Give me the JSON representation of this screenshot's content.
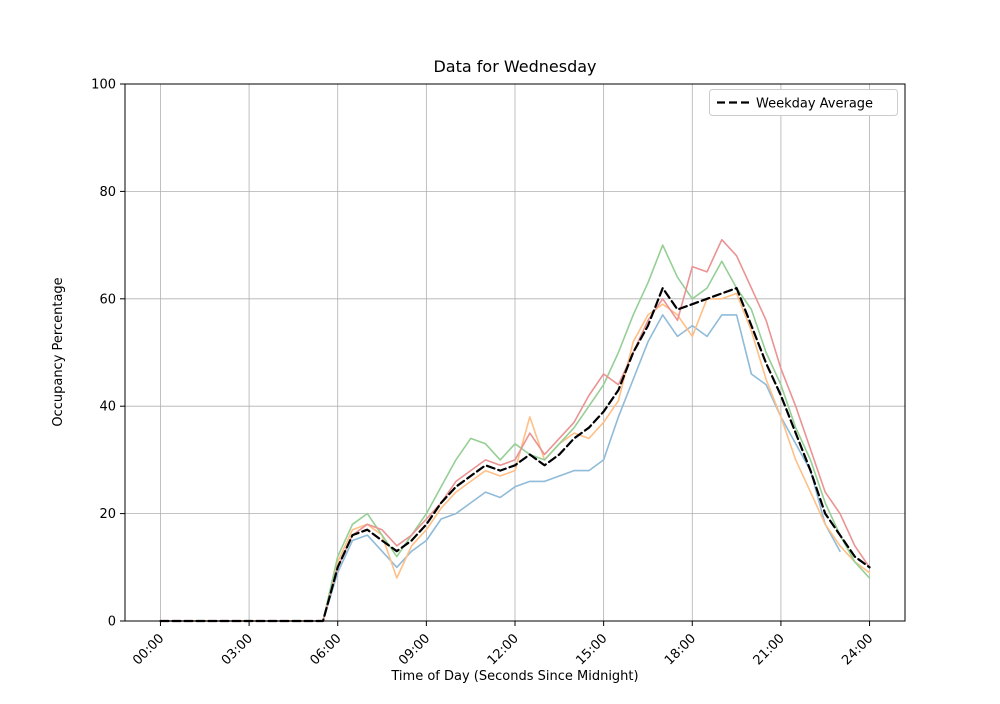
{
  "chart_data": {
    "type": "line",
    "title": "Data for Wednesday",
    "xlabel": "Time of Day (Seconds Since Midnight)",
    "ylabel": "Occupancy Percentage",
    "ylim": [
      0,
      100
    ],
    "xlim_hours": [
      -1.2,
      25.2
    ],
    "grid": true,
    "yticks": [
      0,
      20,
      40,
      60,
      80,
      100
    ],
    "xticks": {
      "hours": [
        0,
        3,
        6,
        9,
        12,
        15,
        18,
        21,
        24
      ],
      "labels": [
        "00:00",
        "03:00",
        "06:00",
        "09:00",
        "12:00",
        "15:00",
        "18:00",
        "21:00",
        "24:00"
      ]
    },
    "legend": {
      "position": "upper right",
      "entries": [
        {
          "label": "Weekday Average",
          "color": "#000000",
          "style": "dashed"
        }
      ]
    },
    "x_hours": [
      0,
      0.5,
      1,
      1.5,
      2,
      2.5,
      3,
      3.5,
      4,
      4.5,
      5,
      5.5,
      6,
      6.5,
      7,
      7.5,
      8,
      8.5,
      9,
      9.5,
      10,
      10.5,
      11,
      11.5,
      12,
      12.5,
      13,
      13.5,
      14,
      14.5,
      15,
      15.5,
      16,
      16.5,
      17,
      17.5,
      18,
      18.5,
      19,
      19.5,
      20,
      20.5,
      21,
      21.5,
      22,
      22.5,
      23,
      23.5,
      24
    ],
    "series": [
      {
        "name": "day-1-blue",
        "color": "#8fbbd9",
        "dashed": false,
        "values": [
          0,
          0,
          0,
          0,
          0,
          0,
          0,
          0,
          0,
          0,
          0,
          0,
          9,
          15,
          16,
          13,
          10,
          13,
          15,
          19,
          20,
          22,
          24,
          23,
          25,
          26,
          26,
          27,
          28,
          28,
          30,
          38,
          45,
          52,
          57,
          53,
          55,
          53,
          57,
          57,
          46,
          44,
          38,
          33,
          28,
          18,
          13,
          null,
          null
        ]
      },
      {
        "name": "day-2-orange",
        "color": "#ffbf86",
        "dashed": false,
        "values": [
          0,
          0,
          0,
          0,
          0,
          0,
          0,
          0,
          0,
          0,
          0,
          0,
          11,
          17,
          18,
          16,
          8,
          14,
          17,
          21,
          24,
          26,
          28,
          27,
          28,
          38,
          30,
          33,
          35,
          34,
          37,
          41,
          52,
          57,
          59,
          57,
          53,
          60,
          60,
          61,
          54,
          45,
          38,
          30,
          24,
          18,
          14,
          11,
          9
        ]
      },
      {
        "name": "day-3-green",
        "color": "#95cf95",
        "dashed": false,
        "values": [
          0,
          0,
          0,
          0,
          0,
          0,
          0,
          0,
          0,
          0,
          0,
          0,
          12,
          18,
          20,
          16,
          12,
          16,
          20,
          25,
          30,
          34,
          33,
          30,
          33,
          31,
          30,
          33,
          36,
          40,
          44,
          50,
          57,
          63,
          70,
          64,
          60,
          62,
          67,
          62,
          58,
          50,
          44,
          36,
          30,
          22,
          16,
          11,
          8
        ]
      },
      {
        "name": "day-4-red",
        "color": "#ea9393",
        "dashed": false,
        "values": [
          0,
          0,
          0,
          0,
          0,
          0,
          0,
          0,
          0,
          0,
          0,
          0,
          10,
          16,
          18,
          17,
          14,
          16,
          19,
          22,
          26,
          28,
          30,
          29,
          30,
          35,
          31,
          34,
          37,
          42,
          46,
          44,
          50,
          56,
          60,
          56,
          66,
          65,
          71,
          68,
          62,
          56,
          47,
          40,
          32,
          24,
          20,
          14,
          10
        ]
      },
      {
        "name": "weekday-average",
        "color": "#000000",
        "dashed": true,
        "values": [
          0,
          0,
          0,
          0,
          0,
          0,
          0,
          0,
          0,
          0,
          0,
          0,
          10,
          16,
          17,
          15,
          13,
          15,
          18,
          22,
          25,
          27,
          29,
          28,
          29,
          31,
          29,
          31,
          34,
          36,
          39,
          43,
          50,
          55,
          62,
          58,
          59,
          60,
          61,
          62,
          55,
          48,
          42,
          35,
          28,
          20,
          16,
          12,
          10
        ]
      }
    ]
  },
  "colors": {
    "grid": "#b0b0b0",
    "axis": "#000000",
    "background": "#ffffff",
    "legend_border": "#cccccc"
  }
}
